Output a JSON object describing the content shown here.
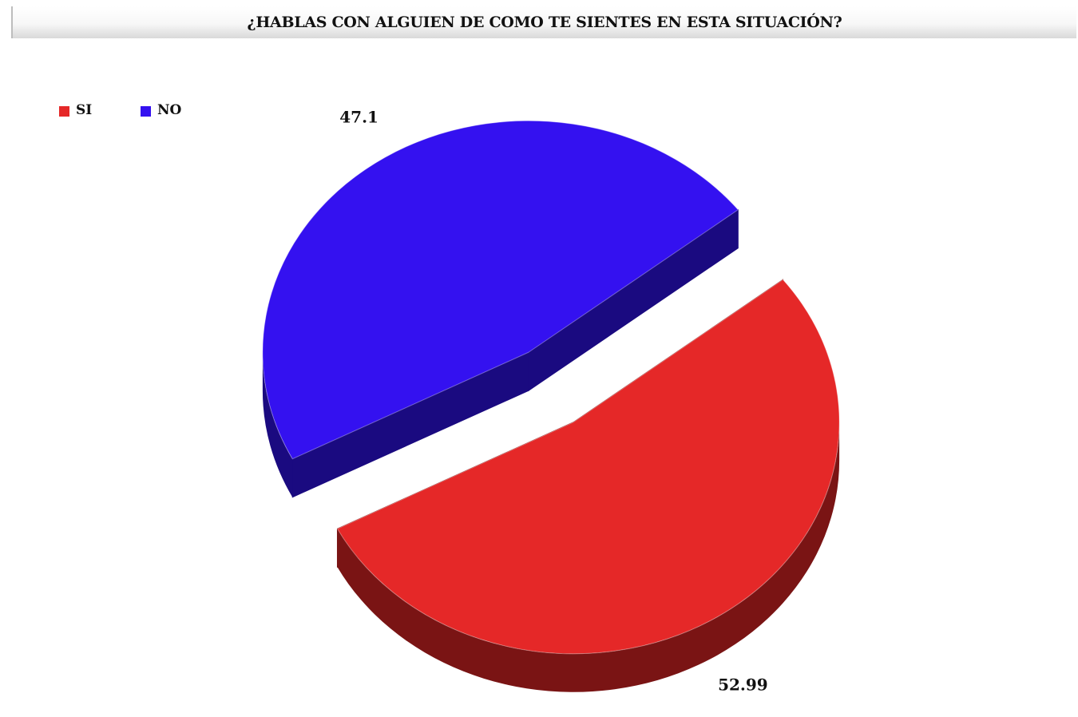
{
  "chart_data": {
    "type": "pie",
    "title": "¿HABLAS CON ALGUIEN DE COMO TE SIENTES EN ESTA SITUACIÓN?",
    "legend_position": "top-left",
    "exploded": true,
    "three_d": true,
    "series": [
      {
        "name": "SI",
        "value": 52.99,
        "label": "52.99",
        "color": "#e52828",
        "side_color": "#7a1414"
      },
      {
        "name": "NO",
        "value": 47.1,
        "label": "47.1",
        "color": "#3411f0",
        "side_color": "#1a0a80"
      }
    ]
  }
}
